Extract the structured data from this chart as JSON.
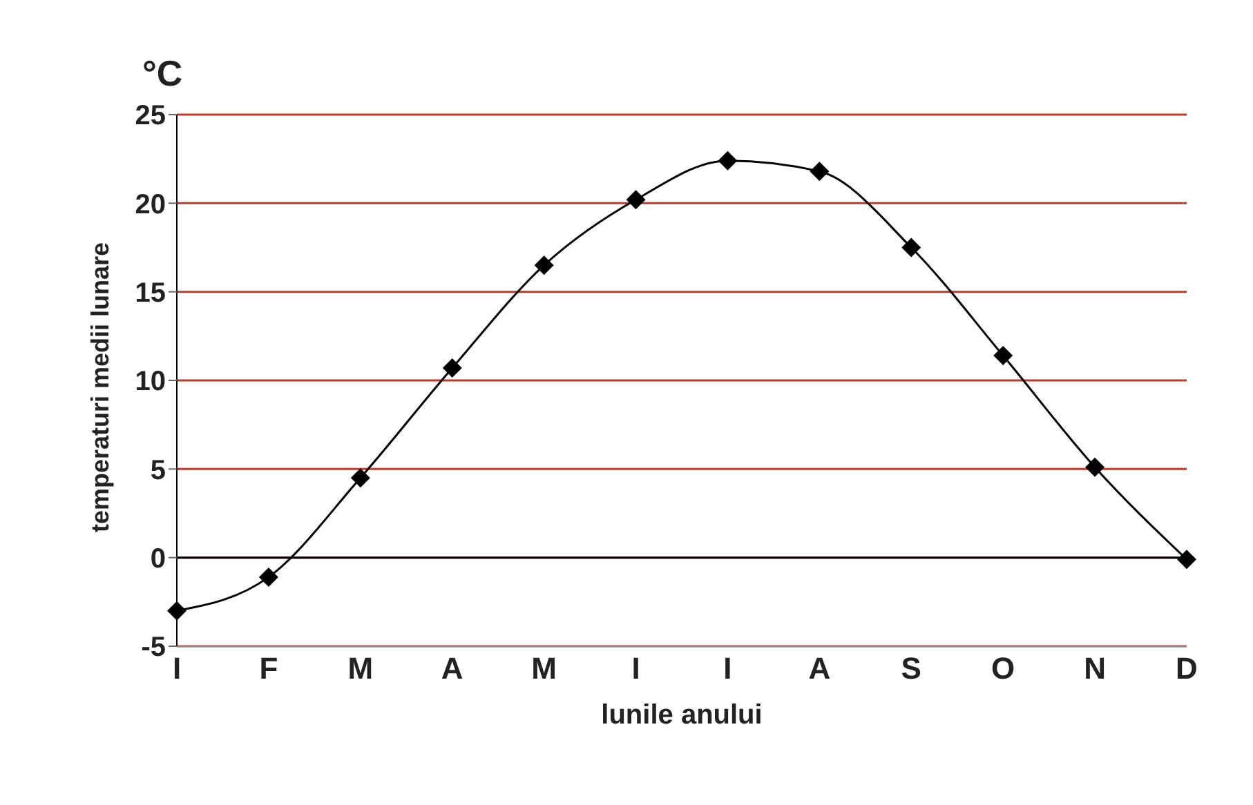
{
  "chart_data": {
    "type": "line",
    "xlabel": "lunile anului",
    "ylabel": "temperaturi medii lunare",
    "annotations": [
      "°C"
    ],
    "categories": [
      "I",
      "F",
      "M",
      "A",
      "M",
      "I",
      "I",
      "A",
      "S",
      "O",
      "N",
      "D"
    ],
    "series": [
      {
        "color": "#000000",
        "values": [
          -3.0,
          -1.1,
          4.5,
          10.7,
          16.5,
          20.2,
          22.4,
          21.8,
          17.5,
          11.4,
          5.1,
          -0.1
        ]
      }
    ],
    "ylim": [
      -5,
      25
    ],
    "yticks": [
      -5,
      0,
      5,
      10,
      15,
      20,
      25
    ],
    "grid": "y",
    "marker": "diamond",
    "line_style": "solid"
  }
}
